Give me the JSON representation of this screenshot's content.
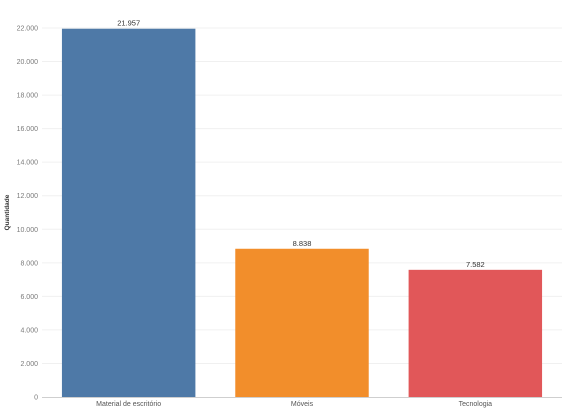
{
  "chart_data": {
    "type": "bar",
    "categories": [
      "Material de escritório",
      "Móveis",
      "Tecnologia"
    ],
    "values": [
      21957,
      8838,
      7582
    ],
    "value_labels": [
      "21.957",
      "8.838",
      "7.582"
    ],
    "colors": [
      "#4e79a7",
      "#f28e2b",
      "#e15759"
    ],
    "ylabel": "Quantidade",
    "xlabel": "",
    "ylim": [
      0,
      22000
    ],
    "yticks": [
      0,
      2000,
      4000,
      6000,
      8000,
      10000,
      12000,
      14000,
      16000,
      18000,
      20000,
      22000
    ],
    "ytick_labels": [
      "0",
      "2.000",
      "4.000",
      "6.000",
      "8.000",
      "10.000",
      "12.000",
      "14.000",
      "16.000",
      "18.000",
      "20.000",
      "22.000"
    ],
    "grid": true,
    "legend": "none"
  }
}
